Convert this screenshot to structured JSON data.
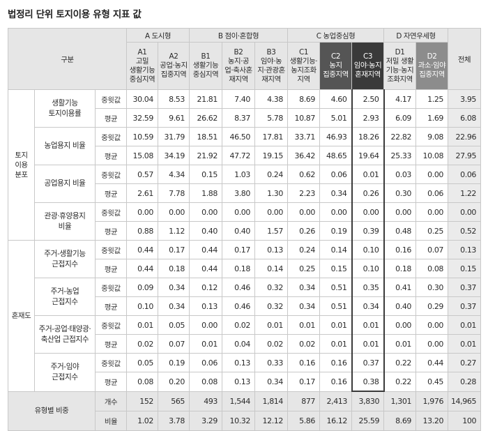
{
  "title": "법정리 단위 토지이용 유형 지표 값",
  "header": {
    "gubun": "구분",
    "total": "전체",
    "groups": [
      {
        "label": "A 도시형"
      },
      {
        "label": "B 점이·혼합형"
      },
      {
        "label": "C 농업중심형"
      },
      {
        "label": "D 자연우세형"
      }
    ],
    "subs": [
      "A1\n고밀\n생활기능\n중심지역",
      "A2\n공업·농지\n집중지역",
      "B1\n생활기능\n중심지역",
      "B2\n농지·공\n업·축사혼\n재지역",
      "B3\n임야·농\n지·관광혼\n재지역",
      "C1\n생활기능·\n농지조화\n지역",
      "C2\n농지\n집중지역",
      "C3\n임야·농지\n혼재지역",
      "D1\n저밀 생활\n기능·농지\n조화지역",
      "D2\n과소·임야\n집중지역"
    ]
  },
  "categories": {
    "land": "토지\n이용\n분포",
    "mix": "혼재도",
    "share": "유형별 비중"
  },
  "stat_labels": {
    "median": "중윗값",
    "mean": "평균",
    "count": "개수",
    "ratio": "비율"
  },
  "indicators": [
    {
      "label": "생활기능\n토지이용률",
      "median": [
        "30.04",
        "8.53",
        "21.81",
        "7.40",
        "4.38",
        "8.69",
        "4.60",
        "2.50",
        "4.17",
        "1.25",
        "3.95"
      ],
      "mean": [
        "32.59",
        "9.61",
        "26.62",
        "8.37",
        "5.78",
        "10.87",
        "5.01",
        "2.93",
        "6.09",
        "1.69",
        "6.08"
      ]
    },
    {
      "label": "농업용지 비율",
      "median": [
        "10.59",
        "31.79",
        "18.51",
        "46.50",
        "17.81",
        "33.71",
        "46.93",
        "18.26",
        "22.82",
        "9.08",
        "22.96"
      ],
      "mean": [
        "15.08",
        "34.19",
        "21.92",
        "47.72",
        "19.15",
        "36.42",
        "48.65",
        "19.64",
        "25.33",
        "10.08",
        "27.95"
      ]
    },
    {
      "label": "공업용지 비율",
      "median": [
        "0.57",
        "4.34",
        "0.15",
        "1.03",
        "0.24",
        "0.62",
        "0.06",
        "0.01",
        "0.03",
        "0.00",
        "0.06"
      ],
      "mean": [
        "2.61",
        "7.78",
        "1.88",
        "3.80",
        "1.30",
        "2.23",
        "0.34",
        "0.26",
        "0.30",
        "0.06",
        "1.22"
      ]
    },
    {
      "label": "관광·휴양용지\n비율",
      "median": [
        "0.00",
        "0.00",
        "0.00",
        "0.00",
        "0.00",
        "0.00",
        "0.00",
        "0.00",
        "0.00",
        "0.00",
        "0.00"
      ],
      "mean": [
        "0.88",
        "1.12",
        "0.40",
        "0.40",
        "1.57",
        "0.26",
        "0.19",
        "0.39",
        "0.48",
        "0.25",
        "0.52"
      ]
    },
    {
      "label": "주거-생활기능\n근접지수",
      "median": [
        "0.44",
        "0.17",
        "0.44",
        "0.17",
        "0.13",
        "0.24",
        "0.14",
        "0.10",
        "0.16",
        "0.07",
        "0.13"
      ],
      "mean": [
        "0.44",
        "0.18",
        "0.44",
        "0.18",
        "0.14",
        "0.25",
        "0.15",
        "0.10",
        "0.18",
        "0.08",
        "0.15"
      ]
    },
    {
      "label": "주거-농업\n근접지수",
      "median": [
        "0.09",
        "0.34",
        "0.12",
        "0.46",
        "0.32",
        "0.34",
        "0.51",
        "0.35",
        "0.41",
        "0.30",
        "0.37"
      ],
      "mean": [
        "0.10",
        "0.34",
        "0.13",
        "0.46",
        "0.32",
        "0.34",
        "0.51",
        "0.34",
        "0.40",
        "0.29",
        "0.37"
      ]
    },
    {
      "label": "주거-공업·태양광·\n축산업 근접지수",
      "median": [
        "0.01",
        "0.05",
        "0.00",
        "0.02",
        "0.01",
        "0.01",
        "0.01",
        "0.01",
        "0.00",
        "0.00",
        "0.01"
      ],
      "mean": [
        "0.02",
        "0.07",
        "0.01",
        "0.04",
        "0.02",
        "0.02",
        "0.01",
        "0.01",
        "0.01",
        "0.00",
        "0.01"
      ]
    },
    {
      "label": "주거-임야\n근접지수",
      "median": [
        "0.05",
        "0.19",
        "0.06",
        "0.13",
        "0.33",
        "0.16",
        "0.16",
        "0.37",
        "0.22",
        "0.44",
        "0.27"
      ],
      "mean": [
        "0.08",
        "0.20",
        "0.08",
        "0.13",
        "0.34",
        "0.17",
        "0.16",
        "0.38",
        "0.22",
        "0.45",
        "0.28"
      ]
    }
  ],
  "share": {
    "count": [
      "152",
      "565",
      "493",
      "1,544",
      "1,814",
      "877",
      "2,413",
      "3,830",
      "1,301",
      "1,976",
      "14,965"
    ],
    "ratio": [
      "1.02",
      "3.78",
      "3.29",
      "10.32",
      "12.12",
      "5.86",
      "16.12",
      "25.59",
      "8.69",
      "13.20",
      "100"
    ]
  }
}
